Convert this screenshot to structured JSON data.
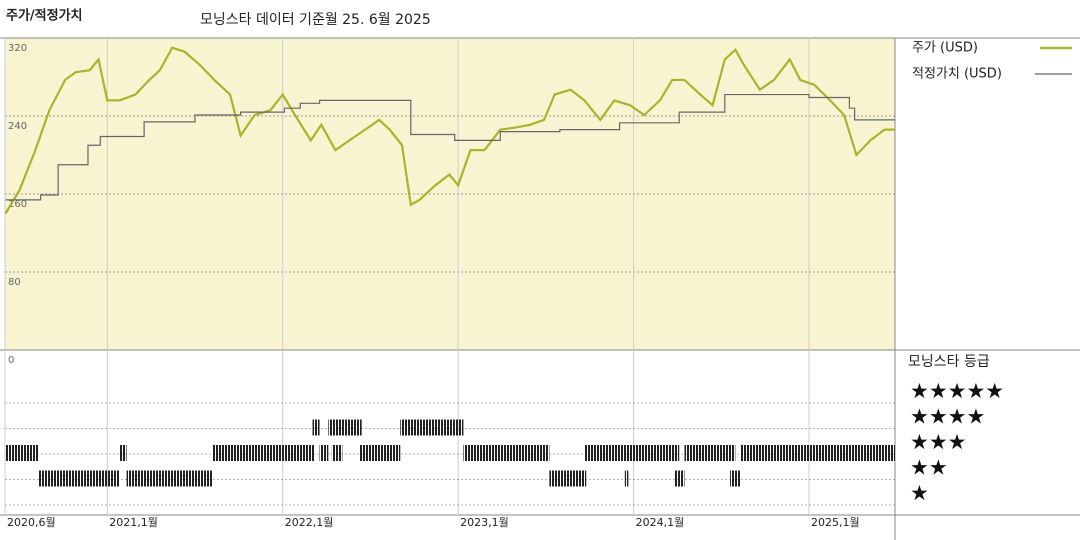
{
  "header": {
    "title": "주가/적정가치",
    "subtitle": "모닝스타 데이터 기준월 25. 6월 2025"
  },
  "chart_data": [
    {
      "type": "line",
      "xlim": [
        2020.417,
        2025.49
      ],
      "xticks": [
        {
          "value": 2020.417,
          "label": "2020,6월"
        },
        {
          "value": 2021.0,
          "label": "2021,1월"
        },
        {
          "value": 2022.0,
          "label": "2022,1월"
        },
        {
          "value": 2023.0,
          "label": "2023,1월"
        },
        {
          "value": 2024.0,
          "label": "2024,1월"
        },
        {
          "value": 2025.0,
          "label": "2025,1월"
        }
      ],
      "ylim": [
        0,
        320
      ],
      "yticks": [
        0,
        80,
        160,
        240,
        320
      ],
      "grid": true,
      "background": "#f8f4d2",
      "series": [
        {
          "name": "주가 (USD)",
          "color": "#a8b42a",
          "drawstyle": "default",
          "x": [
            2020.42,
            2020.5,
            2020.59,
            2020.67,
            2020.76,
            2020.82,
            2020.9,
            2020.95,
            2021.0,
            2021.07,
            2021.16,
            2021.24,
            2021.3,
            2021.37,
            2021.44,
            2021.53,
            2021.61,
            2021.7,
            2021.76,
            2021.84,
            2021.93,
            2022.0,
            2022.07,
            2022.16,
            2022.22,
            2022.3,
            2022.38,
            2022.47,
            2022.55,
            2022.61,
            2022.68,
            2022.73,
            2022.78,
            2022.87,
            2022.95,
            2023.0,
            2023.07,
            2023.15,
            2023.24,
            2023.32,
            2023.41,
            2023.49,
            2023.55,
            2023.64,
            2023.72,
            2023.81,
            2023.89,
            2023.98,
            2024.06,
            2024.15,
            2024.22,
            2024.29,
            2024.38,
            2024.45,
            2024.52,
            2024.58,
            2024.63,
            2024.72,
            2024.8,
            2024.89,
            2024.95,
            2025.03,
            2025.12,
            2025.2,
            2025.27,
            2025.35,
            2025.43,
            2025.49
          ],
          "values": [
            140,
            164,
            205,
            246,
            277,
            285,
            287,
            298,
            256,
            256,
            262,
            277,
            287,
            310,
            306,
            292,
            277,
            262,
            220,
            241,
            246,
            262,
            241,
            215,
            231,
            205,
            215,
            226,
            236,
            226,
            210,
            149,
            154,
            169,
            180,
            169,
            205,
            205,
            226,
            228,
            231,
            236,
            262,
            267,
            256,
            236,
            256,
            251,
            241,
            256,
            277,
            277,
            262,
            251,
            298,
            308,
            292,
            267,
            277,
            298,
            277,
            272,
            256,
            241,
            200,
            215,
            226,
            226
          ]
        },
        {
          "name": "적정가치 (USD)",
          "color": "#666666",
          "drawstyle": "steps-post",
          "x": [
            2020.42,
            2020.62,
            2020.72,
            2020.89,
            2020.96,
            2021.21,
            2021.5,
            2021.76,
            2022.01,
            2022.1,
            2022.21,
            2022.73,
            2022.98,
            2023.24,
            2023.58,
            2023.92,
            2024.26,
            2024.52,
            2025.0,
            2025.23,
            2025.26,
            2025.49
          ],
          "values": [
            154,
            159,
            190,
            210,
            219,
            234,
            241,
            244,
            248,
            253,
            256,
            221,
            215,
            224,
            226,
            233,
            244,
            262,
            259,
            248,
            236,
            236
          ]
        }
      ]
    },
    {
      "type": "timeline",
      "title": "모닝스타 등급",
      "color": "#222222",
      "xlim": [
        2020.417,
        2025.49
      ],
      "series": [
        {
          "name": "★★★★★",
          "values": []
        },
        {
          "name": "★★★★",
          "values": [
            [
              2022.17,
              2022.21
            ],
            [
              2022.26,
              2022.45
            ],
            [
              2022.67,
              2023.03
            ]
          ]
        },
        {
          "name": "★★★",
          "values": [
            [
              2020.42,
              2020.61
            ],
            [
              2021.07,
              2021.11
            ],
            [
              2021.6,
              2022.18
            ],
            [
              2022.21,
              2022.26
            ],
            [
              2022.28,
              2022.34
            ],
            [
              2022.44,
              2022.67
            ],
            [
              2023.03,
              2023.52
            ],
            [
              2023.72,
              2024.26
            ],
            [
              2024.29,
              2024.58
            ],
            [
              2024.61,
              2025.49
            ]
          ]
        },
        {
          "name": "★★",
          "values": [
            [
              2020.61,
              2021.07
            ],
            [
              2021.11,
              2021.6
            ],
            [
              2023.52,
              2023.73
            ],
            [
              2023.95,
              2023.97
            ],
            [
              2024.23,
              2024.29
            ],
            [
              2024.55,
              2024.61
            ]
          ]
        },
        {
          "name": "★",
          "values": []
        }
      ]
    }
  ]
}
